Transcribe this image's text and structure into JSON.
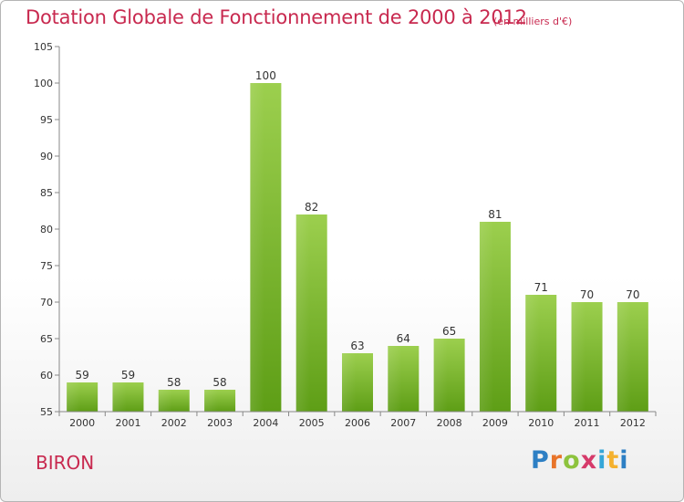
{
  "header": {
    "title": "Dotation Globale de Fonctionnement de 2000 à 2012",
    "unit_note": "(en milliers d'€)"
  },
  "footer": {
    "commune": "BIRON",
    "logo_text": "Proxiti"
  },
  "colors": {
    "title": "#c8294f",
    "bar_top": "#9ccf4e",
    "bar_bottom": "#5e9e16",
    "axis": "#888888",
    "grid": "#dddddd"
  },
  "chart_data": {
    "type": "bar",
    "categories": [
      "2000",
      "2001",
      "2002",
      "2003",
      "2004",
      "2005",
      "2006",
      "2007",
      "2008",
      "2009",
      "2010",
      "2011",
      "2012"
    ],
    "values": [
      59,
      59,
      58,
      58,
      100,
      82,
      63,
      64,
      65,
      81,
      71,
      70,
      70
    ],
    "ylim": [
      55,
      105
    ],
    "yticks": [
      55,
      60,
      65,
      70,
      75,
      80,
      85,
      90,
      95,
      100,
      105
    ],
    "grid": false,
    "data_labels": true
  }
}
